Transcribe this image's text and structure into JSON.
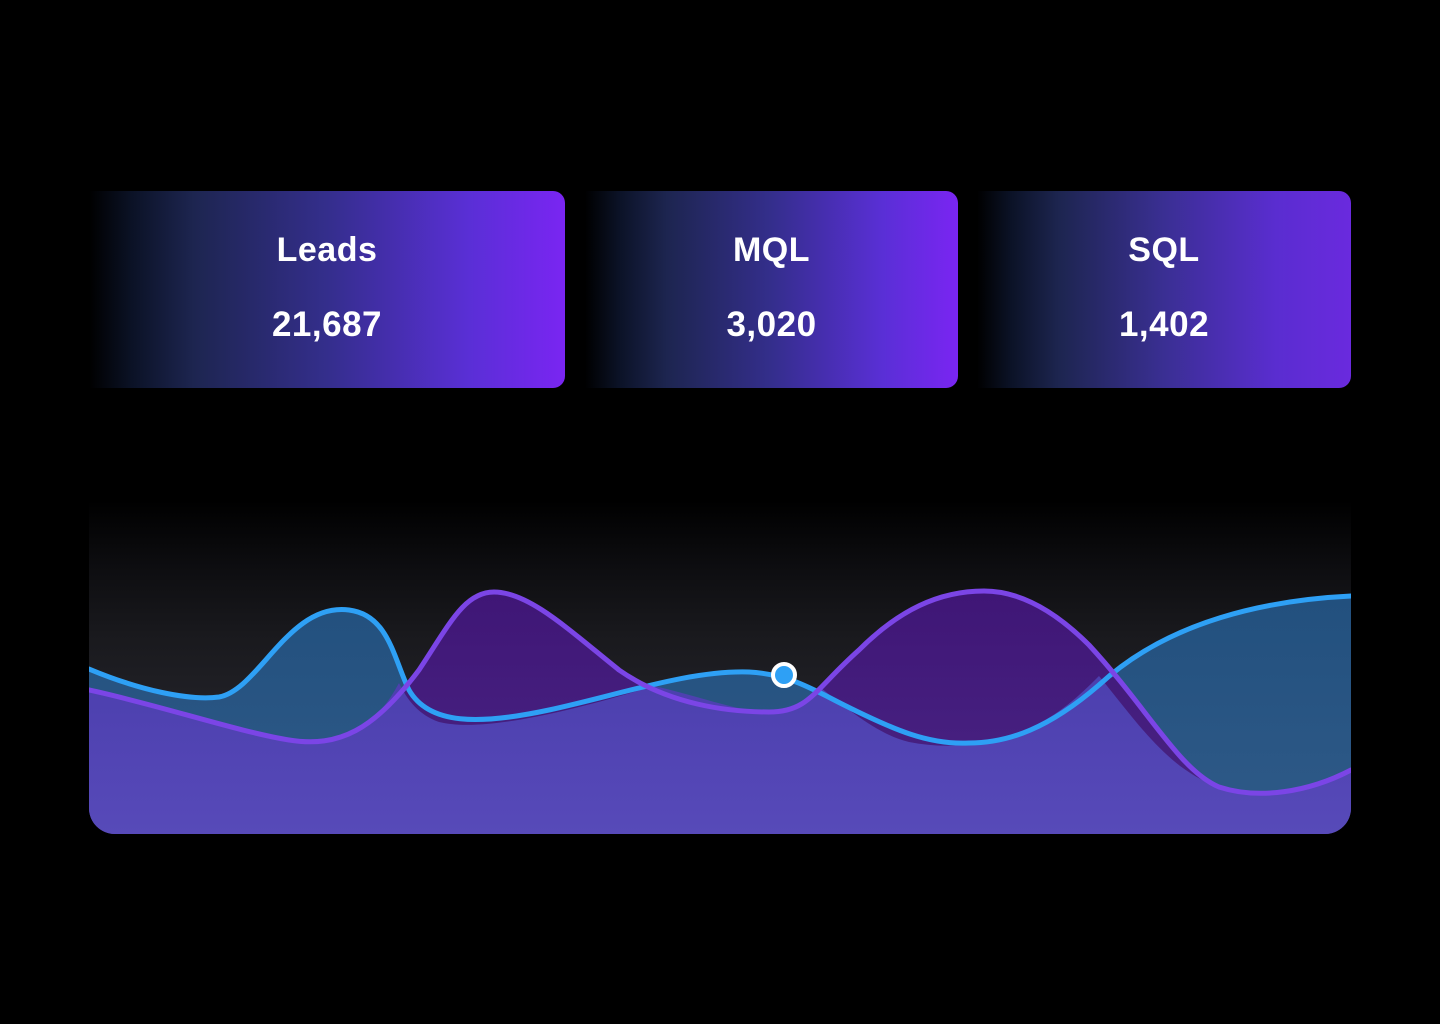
{
  "stats": [
    {
      "label": "Leads",
      "value": "21,687"
    },
    {
      "label": "MQL",
      "value": "3,020"
    },
    {
      "label": "SQL",
      "value": "1,402"
    }
  ],
  "colors": {
    "card_gradient_start": "#000000",
    "card_gradient_end": "#7a25f2",
    "series_a_line": "#2ea0f5",
    "series_b_line": "#7b45e6",
    "series_b_fill": "#5245b8",
    "background": "#000000"
  }
}
